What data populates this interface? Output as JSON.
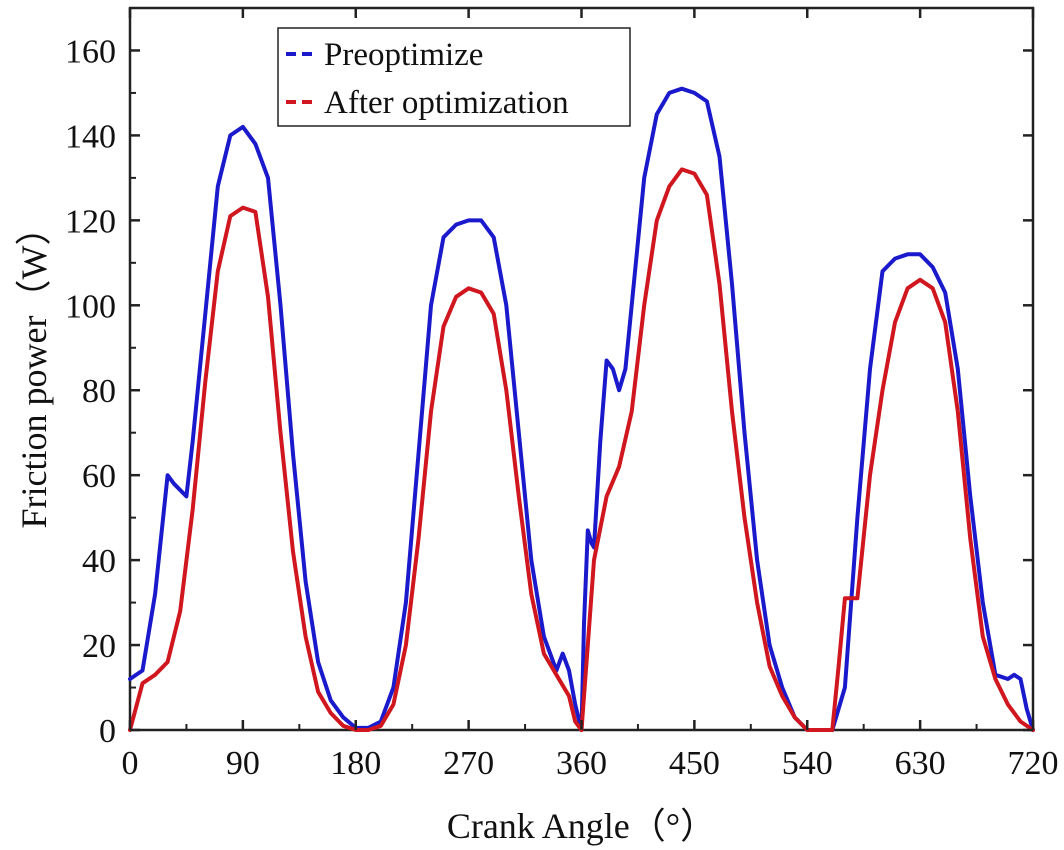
{
  "chart_data": {
    "type": "line",
    "title": "",
    "xlabel": "Crank Angle（°）",
    "ylabel": "Friction power（W）",
    "xlim": [
      0,
      720
    ],
    "ylim": [
      0,
      170
    ],
    "xticks": [
      0,
      90,
      180,
      270,
      360,
      450,
      540,
      630,
      720
    ],
    "yticks": [
      0,
      20,
      40,
      60,
      80,
      100,
      120,
      140,
      160
    ],
    "grid": false,
    "legend_position": "top",
    "series": [
      {
        "name": "Preoptimize",
        "color": "#1a1acc",
        "x": [
          0,
          10,
          20,
          30,
          35,
          45,
          50,
          60,
          70,
          80,
          90,
          100,
          110,
          120,
          130,
          140,
          150,
          160,
          170,
          180,
          190,
          200,
          210,
          220,
          230,
          240,
          250,
          260,
          270,
          280,
          290,
          300,
          310,
          320,
          330,
          340,
          345,
          350,
          355,
          360,
          362,
          365,
          368,
          370,
          375,
          380,
          385,
          390,
          395,
          400,
          410,
          420,
          430,
          440,
          450,
          460,
          470,
          480,
          490,
          500,
          510,
          520,
          530,
          540,
          550,
          560,
          570,
          580,
          590,
          600,
          610,
          620,
          630,
          640,
          650,
          660,
          670,
          680,
          690,
          700,
          705,
          710,
          715,
          720
        ],
        "y": [
          12,
          14,
          32,
          60,
          58,
          55,
          68,
          98,
          128,
          140,
          142,
          138,
          130,
          100,
          65,
          35,
          16,
          7,
          3,
          0.5,
          0.5,
          2,
          10,
          30,
          65,
          100,
          116,
          119,
          120,
          120,
          116,
          100,
          70,
          40,
          22,
          14,
          18,
          14,
          6,
          0,
          25,
          47,
          44,
          43,
          68,
          87,
          85,
          80,
          85,
          100,
          130,
          145,
          150,
          151,
          150,
          148,
          135,
          105,
          70,
          40,
          20,
          10,
          3,
          0,
          0,
          0,
          10,
          50,
          85,
          108,
          111,
          112,
          112,
          109,
          103,
          85,
          55,
          30,
          13,
          12,
          13,
          12,
          5,
          0
        ]
      },
      {
        "name": "After optimization",
        "color": "#d0161e",
        "x": [
          0,
          10,
          20,
          30,
          40,
          50,
          60,
          70,
          80,
          90,
          100,
          110,
          120,
          130,
          140,
          150,
          160,
          170,
          180,
          190,
          200,
          210,
          220,
          230,
          240,
          250,
          260,
          270,
          280,
          290,
          300,
          310,
          320,
          330,
          340,
          350,
          355,
          360,
          365,
          370,
          380,
          390,
          400,
          410,
          420,
          430,
          440,
          450,
          460,
          470,
          480,
          490,
          500,
          510,
          520,
          530,
          540,
          550,
          560,
          565,
          570,
          580,
          590,
          600,
          610,
          620,
          630,
          640,
          650,
          660,
          670,
          680,
          690,
          700,
          710,
          720
        ],
        "y": [
          0,
          11,
          13,
          16,
          28,
          52,
          82,
          108,
          121,
          123,
          122,
          102,
          70,
          42,
          22,
          9,
          4,
          1,
          0,
          0,
          1,
          6,
          20,
          45,
          75,
          95,
          102,
          104,
          103,
          98,
          80,
          55,
          32,
          18,
          13,
          8,
          2,
          0,
          20,
          40,
          55,
          62,
          75,
          100,
          120,
          128,
          132,
          131,
          126,
          105,
          75,
          50,
          30,
          15,
          8,
          3,
          0,
          0,
          0,
          15,
          31,
          31,
          60,
          80,
          96,
          104,
          106,
          104,
          96,
          75,
          45,
          22,
          12,
          6,
          2,
          0
        ]
      }
    ]
  }
}
